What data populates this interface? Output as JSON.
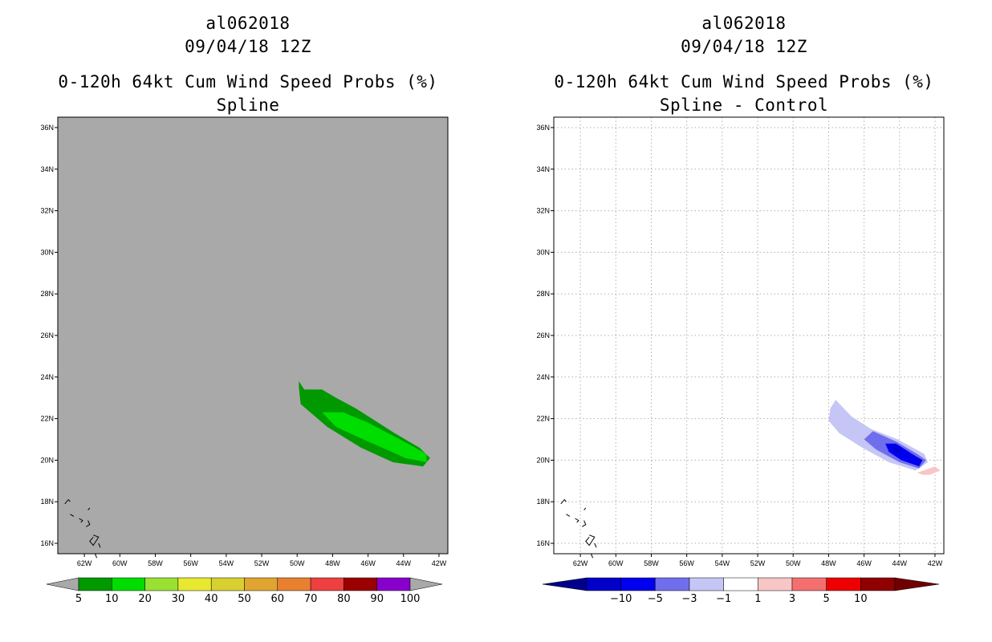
{
  "chart_data": [
    {
      "type": "heatmap",
      "storm_id": "al062018",
      "datetime": "09/04/18 12Z",
      "title": "0-120h 64kt Cum Wind Speed Probs (%)",
      "subtitle": "Spline",
      "background": "#a9a9a9",
      "grid": false,
      "lon_range": [
        -63.5,
        -41.5
      ],
      "lat_range": [
        15.5,
        36.5
      ],
      "x_ticks": [
        "62W",
        "60W",
        "58W",
        "56W",
        "54W",
        "52W",
        "50W",
        "48W",
        "46W",
        "44W",
        "42W"
      ],
      "y_ticks": [
        "16N",
        "18N",
        "20N",
        "22N",
        "24N",
        "26N",
        "28N",
        "30N",
        "32N",
        "34N",
        "36N"
      ],
      "colorbar_labels": [
        "5",
        "10",
        "20",
        "30",
        "40",
        "50",
        "60",
        "70",
        "80",
        "90",
        "100"
      ],
      "colorbar_colors": [
        "#009900",
        "#00dd00",
        "#99e033",
        "#e8e830",
        "#d8d030",
        "#e0a530",
        "#e88030",
        "#ee4040",
        "#9b0000",
        "#8800cc"
      ],
      "regions": [
        {
          "level": "5-10",
          "color": "#009900",
          "lonlat": [
            [
              -49.9,
              23.8
            ],
            [
              -49.6,
              23.4
            ],
            [
              -48.6,
              23.4
            ],
            [
              -47.8,
              23.0
            ],
            [
              -46.7,
              22.5
            ],
            [
              -44.5,
              21.3
            ],
            [
              -43.1,
              20.6
            ],
            [
              -42.5,
              20.1
            ],
            [
              -42.9,
              19.7
            ],
            [
              -44.6,
              19.9
            ],
            [
              -46.4,
              20.6
            ],
            [
              -48.3,
              21.6
            ],
            [
              -49.8,
              22.7
            ],
            [
              -49.9,
              23.5
            ]
          ]
        },
        {
          "level": "10-20",
          "color": "#00dd00",
          "lonlat": [
            [
              -48.6,
              22.3
            ],
            [
              -47.4,
              22.3
            ],
            [
              -46.0,
              21.8
            ],
            [
              -44.2,
              21.0
            ],
            [
              -42.7,
              20.3
            ],
            [
              -42.7,
              19.9
            ],
            [
              -43.9,
              20.1
            ],
            [
              -45.2,
              20.6
            ],
            [
              -46.8,
              21.2
            ],
            [
              -47.8,
              21.6
            ]
          ]
        }
      ]
    },
    {
      "type": "heatmap",
      "storm_id": "al062018",
      "datetime": "09/04/18 12Z",
      "title": "0-120h 64kt Cum Wind Speed Probs (%)",
      "subtitle": "Spline - Control",
      "background": "#ffffff",
      "grid": true,
      "lon_range": [
        -63.5,
        -41.5
      ],
      "lat_range": [
        15.5,
        36.5
      ],
      "x_ticks": [
        "62W",
        "60W",
        "58W",
        "56W",
        "54W",
        "52W",
        "50W",
        "48W",
        "46W",
        "44W",
        "42W"
      ],
      "y_ticks": [
        "16N",
        "18N",
        "20N",
        "22N",
        "24N",
        "26N",
        "28N",
        "30N",
        "32N",
        "34N",
        "36N"
      ],
      "colorbar_labels": [
        "-10",
        "-5",
        "-3",
        "-1",
        "1",
        "3",
        "5",
        "10"
      ],
      "colorbar_colors": [
        "#0000c8",
        "#0000ee",
        "#6f6fee",
        "#c6c6f6",
        "#ffffff",
        "#f8c6c6",
        "#f47070",
        "#ee0000",
        "#900000"
      ],
      "regions": [
        {
          "level": "-3 to -1",
          "color": "#c6c6f6",
          "lonlat": [
            [
              -47.9,
              22.5
            ],
            [
              -47.6,
              22.9
            ],
            [
              -46.7,
              22.1
            ],
            [
              -45.6,
              21.5
            ],
            [
              -44.1,
              21.0
            ],
            [
              -42.6,
              20.3
            ],
            [
              -42.4,
              19.9
            ],
            [
              -43.1,
              19.5
            ],
            [
              -44.6,
              19.9
            ],
            [
              -46.1,
              20.6
            ],
            [
              -47.4,
              21.3
            ],
            [
              -48.0,
              21.9
            ]
          ]
        },
        {
          "level": "-5 to -3",
          "color": "#6f6fee",
          "lonlat": [
            [
              -46.0,
              21.0
            ],
            [
              -45.5,
              21.4
            ],
            [
              -44.2,
              20.9
            ],
            [
              -43.0,
              20.3
            ],
            [
              -42.5,
              20.0
            ],
            [
              -42.9,
              19.6
            ],
            [
              -44.0,
              19.9
            ],
            [
              -45.3,
              20.5
            ]
          ]
        },
        {
          "level": "-10 to -5",
          "color": "#0000ee",
          "lonlat": [
            [
              -44.8,
              20.8
            ],
            [
              -44.2,
              20.8
            ],
            [
              -43.1,
              20.2
            ],
            [
              -42.7,
              20.0
            ],
            [
              -42.9,
              19.7
            ],
            [
              -43.9,
              20.0
            ],
            [
              -44.6,
              20.4
            ]
          ]
        },
        {
          "level": "< -10",
          "color": "#0000c8",
          "lonlat": [
            [
              -44.6,
              20.7
            ],
            [
              -44.2,
              20.6
            ],
            [
              -43.8,
              20.4
            ],
            [
              -44.2,
              20.4
            ]
          ]
        },
        {
          "level": "1 to 3",
          "color": "#f8c6c6",
          "lonlat": [
            [
              -43.0,
              19.4
            ],
            [
              -42.0,
              19.7
            ],
            [
              -41.7,
              19.5
            ],
            [
              -42.3,
              19.3
            ],
            [
              -42.7,
              19.3
            ]
          ]
        }
      ]
    }
  ]
}
